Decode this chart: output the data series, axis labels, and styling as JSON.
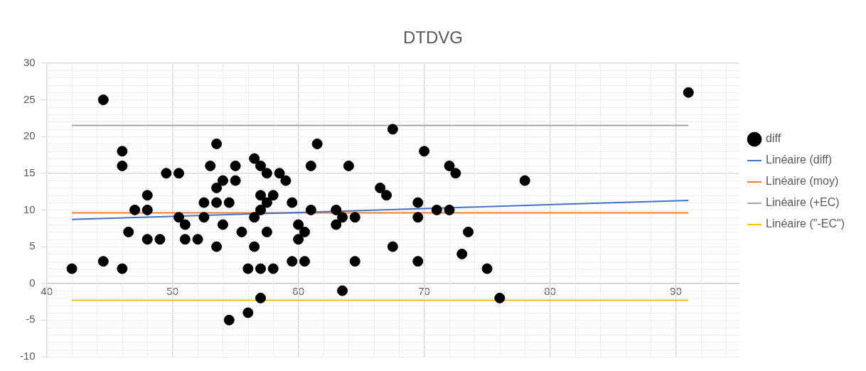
{
  "chart_data": {
    "type": "scatter",
    "title": "DTDVG",
    "xlim": [
      40,
      95
    ],
    "xticks": [
      40,
      50,
      60,
      70,
      80,
      90
    ],
    "ylim": [
      -10,
      30
    ],
    "yticks": [
      -10,
      -5,
      0,
      5,
      10,
      15,
      20,
      25,
      30
    ],
    "grid": true,
    "legend": "right",
    "series": [
      {
        "name": "diff",
        "marker": "circle",
        "color": "#000000",
        "x": [
          42,
          44.5,
          44.5,
          46,
          46,
          46,
          46.5,
          47,
          48,
          48,
          48,
          49,
          49.5,
          50.5,
          50.5,
          51,
          51,
          52,
          52.5,
          52.5,
          53,
          53.5,
          53.5,
          53.5,
          53.5,
          54,
          54,
          54.5,
          54.5,
          55,
          55,
          55.5,
          56,
          56,
          56.5,
          56.5,
          56.5,
          57,
          57,
          57,
          57,
          57,
          57.5,
          57.5,
          57.5,
          58,
          58,
          58.5,
          59,
          59.5,
          59.5,
          60,
          60,
          60.5,
          60.5,
          61,
          61,
          61.5,
          63,
          63,
          63.5,
          63.5,
          64,
          64.5,
          64.5,
          66.5,
          67,
          67.5,
          67.5,
          69.5,
          69.5,
          69.5,
          70,
          71,
          72,
          72,
          72.5,
          73,
          73.5,
          75,
          76,
          78,
          91
        ],
        "values": [
          2,
          25,
          3,
          18,
          16,
          2,
          7,
          10,
          12,
          10,
          6,
          6,
          15,
          15,
          9,
          8,
          6,
          6,
          11,
          9,
          16,
          19,
          13,
          11,
          5,
          14,
          8,
          11,
          -5,
          16,
          14,
          7,
          2,
          -4,
          17,
          9,
          5,
          16,
          12,
          10,
          2,
          -2,
          15,
          11,
          7,
          12,
          2,
          15,
          14,
          11,
          3,
          8,
          6,
          7,
          3,
          16,
          10,
          19,
          10,
          8,
          9,
          -1,
          16,
          9,
          3,
          13,
          12,
          21,
          5,
          11,
          9,
          3,
          18,
          10,
          16,
          10,
          15,
          4,
          7,
          2,
          -2,
          14,
          26
        ]
      },
      {
        "name": "Linéaire (diff)",
        "type": "line",
        "color": "#4472c4",
        "x": [
          42,
          91
        ],
        "values": [
          8.7,
          11.3
        ]
      },
      {
        "name": "Linéaire (moy)",
        "type": "line",
        "color": "#ed7d31",
        "x": [
          42,
          91
        ],
        "values": [
          9.6,
          9.6
        ]
      },
      {
        "name": "Linéaire (+EC)",
        "type": "line",
        "color": "#a5a5a5",
        "x": [
          42,
          91
        ],
        "values": [
          21.5,
          21.5
        ]
      },
      {
        "name": "Linéaire (\"-EC\")",
        "type": "line",
        "color": "#ffc000",
        "x": [
          42,
          91
        ],
        "values": [
          -2.3,
          -2.3
        ]
      }
    ]
  }
}
